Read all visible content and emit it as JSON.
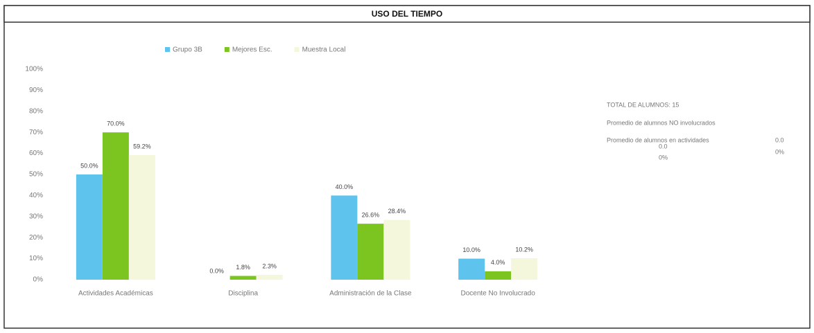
{
  "chart_data": {
    "type": "bar",
    "title": "USO DEL TIEMPO",
    "categories": [
      "Actividades Académicas",
      "Disciplina",
      "Administración de la Clase",
      "Docente No Involucrado"
    ],
    "series": [
      {
        "name": "Grupo 3B",
        "color": "#5ec4ee",
        "values": [
          50.0,
          0.0,
          40.0,
          10.0
        ],
        "value_labels": [
          "50.0%",
          "0.0%",
          "40.0%",
          "10.0%"
        ]
      },
      {
        "name": "Mejores Esc.",
        "color": "#7cc520",
        "values": [
          70.0,
          1.8,
          26.6,
          4.0
        ],
        "value_labels": [
          "70.0%",
          "1.8%",
          "26.6%",
          "4.0%"
        ]
      },
      {
        "name": "Muestra Local",
        "color": "#f4f7dc",
        "values": [
          59.2,
          2.3,
          28.4,
          10.2
        ],
        "value_labels": [
          "59.2%",
          "2.3%",
          "28.4%",
          "10.2%"
        ]
      }
    ],
    "ylim": [
      0,
      100
    ],
    "yticks": [
      {
        "value": 0,
        "label": "0%"
      },
      {
        "value": 10,
        "label": "10%"
      },
      {
        "value": 20,
        "label": "20%"
      },
      {
        "value": 30,
        "label": "30%"
      },
      {
        "value": 40,
        "label": "40%"
      },
      {
        "value": 50,
        "label": "50%"
      },
      {
        "value": 60,
        "label": "60%"
      },
      {
        "value": 70,
        "label": "70%"
      },
      {
        "value": 80,
        "label": "80%"
      },
      {
        "value": 90,
        "label": "90%"
      },
      {
        "value": 100,
        "label": "100%"
      }
    ],
    "legend": "top",
    "annotations": [
      "TOTAL DE ALUMNOS: 15",
      "Promedio de alumnos NO involucrados",
      "Promedio de alumnos en actividades",
      "0.0",
      "0%",
      "0.0",
      "0%"
    ]
  }
}
